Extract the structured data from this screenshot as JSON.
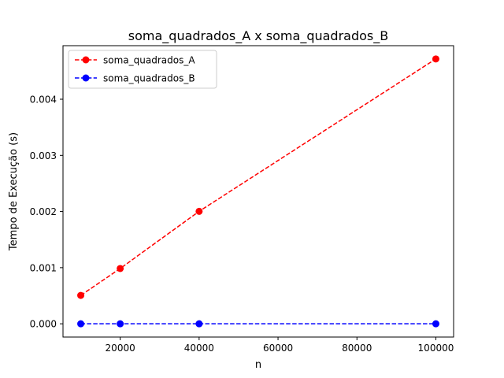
{
  "chart_data": {
    "type": "line",
    "title": "soma_quadrados_A x soma_quadrados_B",
    "xlabel": "n",
    "ylabel": "Tempo de Execução (s)",
    "xlim": [
      5500,
      104500
    ],
    "ylim": [
      -0.000236,
      0.004954
    ],
    "xticks": [
      20000,
      40000,
      60000,
      80000,
      100000
    ],
    "xtick_labels": [
      "20000",
      "40000",
      "60000",
      "80000",
      "100000"
    ],
    "yticks": [
      0,
      0.001,
      0.002,
      0.003,
      0.004
    ],
    "ytick_labels": [
      "0.000",
      "0.001",
      "0.002",
      "0.003",
      "0.004"
    ],
    "grid": false,
    "legend_position": "top-left",
    "series": [
      {
        "name": "soma_quadrados_A",
        "color": "#ff0000",
        "line_style": "dashed",
        "marker": "circle",
        "x": [
          10000,
          20000,
          40000,
          100000
        ],
        "y": [
          0.000506,
          0.000985,
          0.002003,
          0.004718
        ]
      },
      {
        "name": "soma_quadrados_B",
        "color": "#0000ff",
        "line_style": "dashed",
        "marker": "circle",
        "x": [
          10000,
          20000,
          40000,
          100000
        ],
        "y": [
          5e-07,
          5e-07,
          5e-07,
          5e-07
        ]
      }
    ]
  }
}
